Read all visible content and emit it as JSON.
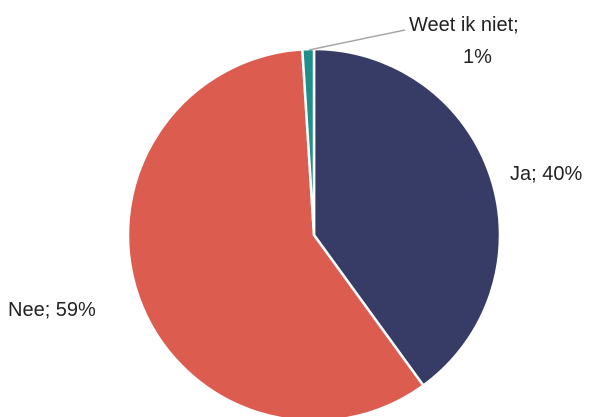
{
  "chart_data": {
    "type": "pie",
    "title": "",
    "slices": [
      {
        "label": "Ja",
        "value": 40,
        "display": "Ja; 40%",
        "color": "#373c67"
      },
      {
        "label": "Nee",
        "value": 59,
        "display": "Nee; 59%",
        "color": "#dc5c50"
      },
      {
        "label": "Weet ik niet",
        "value": 1,
        "display_lines": [
          "Weet ik niet;",
          "1%"
        ],
        "color": "#1f8f89"
      }
    ],
    "leader_line_color": "#a6a6a6"
  }
}
